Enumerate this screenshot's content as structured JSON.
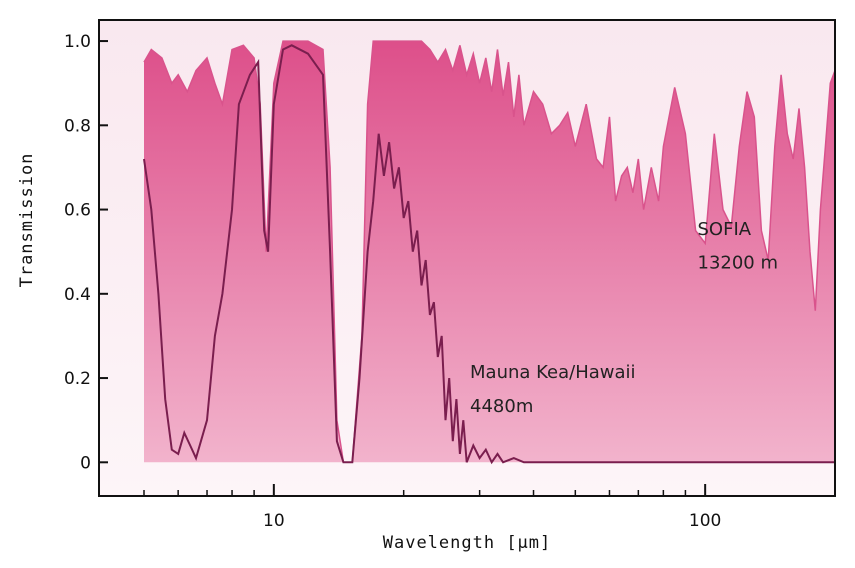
{
  "chart_data": {
    "type": "area",
    "title": "",
    "xlabel": "Wavelength [μm]",
    "ylabel": "Transmission",
    "x_scale": "log",
    "xlim": [
      5,
      200
    ],
    "ylim": [
      -0.08,
      1.05
    ],
    "x_ticks": [
      {
        "value": 10,
        "label": "10"
      },
      {
        "value": 100,
        "label": "100"
      }
    ],
    "y_ticks": [
      {
        "value": 0,
        "label": "0"
      },
      {
        "value": 0.2,
        "label": "0.2"
      },
      {
        "value": 0.4,
        "label": "0.4"
      },
      {
        "value": 0.6,
        "label": "0.6"
      },
      {
        "value": 0.8,
        "label": "0.8"
      },
      {
        "value": 1.0,
        "label": "1.0"
      }
    ],
    "grid": false,
    "series": [
      {
        "name": "SOFIA 13200 m",
        "color": "#d9538c",
        "fill": "#e87aa8",
        "points": [
          [
            5.0,
            0.0
          ],
          [
            5.0,
            0.95
          ],
          [
            5.2,
            0.98
          ],
          [
            5.5,
            0.96
          ],
          [
            5.8,
            0.9
          ],
          [
            6.0,
            0.92
          ],
          [
            6.3,
            0.88
          ],
          [
            6.6,
            0.93
          ],
          [
            7.0,
            0.96
          ],
          [
            7.3,
            0.9
          ],
          [
            7.6,
            0.85
          ],
          [
            8.0,
            0.98
          ],
          [
            8.5,
            0.99
          ],
          [
            9.0,
            0.96
          ],
          [
            9.3,
            0.85
          ],
          [
            9.6,
            0.5
          ],
          [
            10.0,
            0.9
          ],
          [
            10.5,
            1.0
          ],
          [
            11.0,
            1.0
          ],
          [
            12.0,
            1.0
          ],
          [
            13.0,
            0.98
          ],
          [
            13.5,
            0.7
          ],
          [
            14.0,
            0.1
          ],
          [
            14.5,
            0.0
          ],
          [
            15.2,
            0.0
          ],
          [
            16.0,
            0.3
          ],
          [
            16.5,
            0.85
          ],
          [
            17.0,
            1.0
          ],
          [
            18.0,
            1.0
          ],
          [
            20.0,
            1.0
          ],
          [
            22.0,
            1.0
          ],
          [
            23.0,
            0.98
          ],
          [
            24.0,
            0.95
          ],
          [
            25.0,
            0.98
          ],
          [
            26.0,
            0.93
          ],
          [
            27.0,
            0.99
          ],
          [
            28.0,
            0.92
          ],
          [
            29.0,
            0.97
          ],
          [
            30.0,
            0.9
          ],
          [
            31.0,
            0.96
          ],
          [
            32.0,
            0.88
          ],
          [
            33.0,
            0.98
          ],
          [
            34.0,
            0.87
          ],
          [
            35.0,
            0.95
          ],
          [
            36.0,
            0.82
          ],
          [
            37.0,
            0.92
          ],
          [
            38.0,
            0.8
          ],
          [
            40.0,
            0.88
          ],
          [
            42.0,
            0.85
          ],
          [
            44.0,
            0.78
          ],
          [
            46.0,
            0.8
          ],
          [
            48.0,
            0.83
          ],
          [
            50.0,
            0.75
          ],
          [
            53.0,
            0.85
          ],
          [
            56.0,
            0.72
          ],
          [
            58.0,
            0.7
          ],
          [
            60.0,
            0.82
          ],
          [
            62.0,
            0.62
          ],
          [
            64.0,
            0.68
          ],
          [
            66.0,
            0.7
          ],
          [
            68.0,
            0.64
          ],
          [
            70.0,
            0.72
          ],
          [
            72.0,
            0.6
          ],
          [
            75.0,
            0.7
          ],
          [
            78.0,
            0.62
          ],
          [
            80.0,
            0.75
          ],
          [
            85.0,
            0.89
          ],
          [
            90.0,
            0.78
          ],
          [
            95.0,
            0.55
          ],
          [
            100.0,
            0.52
          ],
          [
            105.0,
            0.78
          ],
          [
            110.0,
            0.6
          ],
          [
            115.0,
            0.56
          ],
          [
            120.0,
            0.75
          ],
          [
            125.0,
            0.88
          ],
          [
            130.0,
            0.82
          ],
          [
            135.0,
            0.55
          ],
          [
            140.0,
            0.48
          ],
          [
            145.0,
            0.75
          ],
          [
            150.0,
            0.92
          ],
          [
            155.0,
            0.78
          ],
          [
            160.0,
            0.72
          ],
          [
            165.0,
            0.84
          ],
          [
            170.0,
            0.7
          ],
          [
            175.0,
            0.5
          ],
          [
            180.0,
            0.36
          ],
          [
            185.0,
            0.6
          ],
          [
            190.0,
            0.75
          ],
          [
            195.0,
            0.9
          ],
          [
            200.0,
            0.93
          ],
          [
            200.0,
            0.0
          ]
        ]
      },
      {
        "name": "Mauna Kea/Hawaii 4480m",
        "color": "#7a1e4e",
        "points": [
          [
            5.0,
            0.72
          ],
          [
            5.2,
            0.6
          ],
          [
            5.4,
            0.4
          ],
          [
            5.6,
            0.15
          ],
          [
            5.8,
            0.03
          ],
          [
            6.0,
            0.02
          ],
          [
            6.2,
            0.07
          ],
          [
            6.4,
            0.04
          ],
          [
            6.6,
            0.01
          ],
          [
            7.0,
            0.1
          ],
          [
            7.3,
            0.3
          ],
          [
            7.6,
            0.4
          ],
          [
            8.0,
            0.6
          ],
          [
            8.3,
            0.85
          ],
          [
            8.8,
            0.92
          ],
          [
            9.2,
            0.95
          ],
          [
            9.5,
            0.55
          ],
          [
            9.7,
            0.5
          ],
          [
            10.0,
            0.85
          ],
          [
            10.5,
            0.98
          ],
          [
            11.0,
            0.99
          ],
          [
            12.0,
            0.97
          ],
          [
            13.0,
            0.92
          ],
          [
            13.5,
            0.5
          ],
          [
            14.0,
            0.05
          ],
          [
            14.5,
            0.0
          ],
          [
            15.2,
            0.0
          ],
          [
            15.8,
            0.2
          ],
          [
            16.5,
            0.5
          ],
          [
            17.0,
            0.62
          ],
          [
            17.5,
            0.78
          ],
          [
            18.0,
            0.68
          ],
          [
            18.5,
            0.76
          ],
          [
            19.0,
            0.65
          ],
          [
            19.5,
            0.7
          ],
          [
            20.0,
            0.58
          ],
          [
            20.5,
            0.62
          ],
          [
            21.0,
            0.5
          ],
          [
            21.5,
            0.55
          ],
          [
            22.0,
            0.42
          ],
          [
            22.5,
            0.48
          ],
          [
            23.0,
            0.35
          ],
          [
            23.5,
            0.38
          ],
          [
            24.0,
            0.25
          ],
          [
            24.5,
            0.3
          ],
          [
            25.0,
            0.1
          ],
          [
            25.5,
            0.2
          ],
          [
            26.0,
            0.05
          ],
          [
            26.5,
            0.15
          ],
          [
            27.0,
            0.02
          ],
          [
            27.5,
            0.1
          ],
          [
            28.0,
            0.0
          ],
          [
            29.0,
            0.04
          ],
          [
            30.0,
            0.01
          ],
          [
            31.0,
            0.03
          ],
          [
            32.0,
            0.0
          ],
          [
            33.0,
            0.02
          ],
          [
            34.0,
            0.0
          ],
          [
            36.0,
            0.01
          ],
          [
            38.0,
            0.0
          ],
          [
            200.0,
            0.0
          ]
        ]
      }
    ],
    "annotations": [
      {
        "text": "SOFIA",
        "x": 96,
        "y": 0.54
      },
      {
        "text": "13200 m",
        "x": 96,
        "y": 0.46
      },
      {
        "text": "Mauna Kea/Hawaii",
        "x": 28.5,
        "y": 0.2
      },
      {
        "text": "4480m",
        "x": 28.5,
        "y": 0.12
      }
    ]
  }
}
